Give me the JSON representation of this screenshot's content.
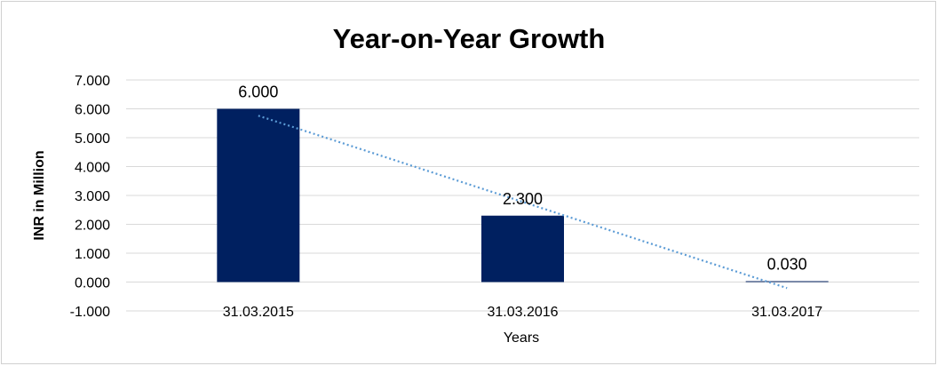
{
  "chart_data": {
    "type": "bar",
    "title": "Year-on-Year Growth",
    "xlabel": "Years",
    "ylabel": "INR in Million",
    "categories": [
      "31.03.2015",
      "31.03.2016",
      "31.03.2017"
    ],
    "values": [
      6.0,
      2.3,
      0.03
    ],
    "data_labels": [
      "6.000",
      "2.300",
      "0.030"
    ],
    "ylim": [
      -1,
      7
    ],
    "yticks": [
      -1,
      0,
      1,
      2,
      3,
      4,
      5,
      6,
      7
    ],
    "ytick_labels": [
      "-1.000",
      "0.000",
      "1.000",
      "2.000",
      "3.000",
      "4.000",
      "5.000",
      "6.000",
      "7.000"
    ],
    "grid": true,
    "trendline": {
      "type": "linear",
      "style": "dotted",
      "color": "#5b9bd5"
    },
    "bar_color": "#002060",
    "grid_color": "#d9d9d9"
  }
}
